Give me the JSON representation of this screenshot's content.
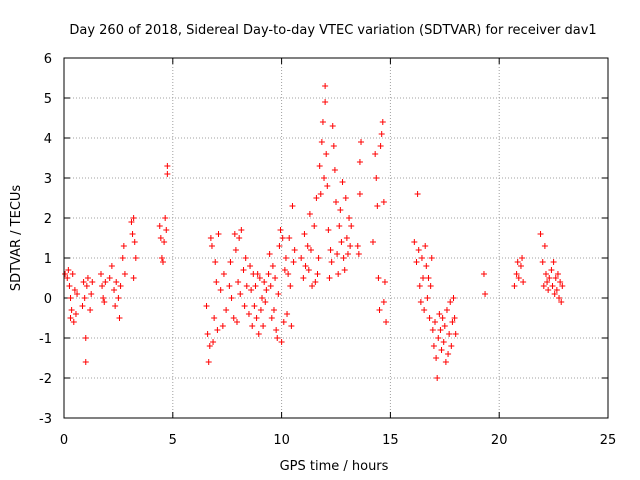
{
  "chart_data": {
    "type": "scatter",
    "title": "Day 260 of 2018, Sidereal Day-to-day VTEC variation (SDTVAR) for receiver dav1",
    "xlabel": "GPS time / hours",
    "ylabel": "SDTVAR / TECUs",
    "xlim": [
      0,
      25
    ],
    "ylim": [
      -3,
      6
    ],
    "xticks": [
      "0",
      "5",
      "10",
      "15",
      "20",
      "25"
    ],
    "yticks": [
      "-3",
      "-2",
      "-1",
      "0",
      "1",
      "2",
      "3",
      "4",
      "5",
      "6"
    ],
    "grid": true,
    "marker": "plus",
    "colors": {
      "points": "#ff0000",
      "grid": "#a0a0a0",
      "axis": "#000000"
    },
    "series": [
      {
        "name": "SDTVAR",
        "points": [
          [
            0.05,
            0.6
          ],
          [
            0.15,
            0.5
          ],
          [
            0.2,
            0.7
          ],
          [
            0.25,
            0.3
          ],
          [
            0.3,
            0.0
          ],
          [
            0.3,
            -0.5
          ],
          [
            0.35,
            -0.3
          ],
          [
            0.4,
            0.6
          ],
          [
            0.45,
            -0.6
          ],
          [
            0.5,
            0.2
          ],
          [
            0.55,
            -0.4
          ],
          [
            0.6,
            0.1
          ],
          [
            0.85,
            -0.2
          ],
          [
            0.9,
            0.4
          ],
          [
            0.95,
            0.0
          ],
          [
            1.0,
            -1.0
          ],
          [
            1.0,
            -1.6
          ],
          [
            1.05,
            0.3
          ],
          [
            1.1,
            0.5
          ],
          [
            1.2,
            -0.3
          ],
          [
            1.25,
            0.1
          ],
          [
            1.3,
            0.4
          ],
          [
            1.7,
            0.6
          ],
          [
            1.75,
            0.3
          ],
          [
            1.8,
            0.0
          ],
          [
            1.85,
            -0.1
          ],
          [
            1.9,
            0.4
          ],
          [
            2.1,
            0.5
          ],
          [
            2.2,
            0.8
          ],
          [
            2.3,
            0.2
          ],
          [
            2.35,
            -0.2
          ],
          [
            2.4,
            0.4
          ],
          [
            2.5,
            0.0
          ],
          [
            2.55,
            -0.5
          ],
          [
            2.6,
            0.3
          ],
          [
            2.7,
            1.0
          ],
          [
            2.75,
            1.3
          ],
          [
            2.8,
            0.6
          ],
          [
            3.1,
            1.9
          ],
          [
            3.15,
            1.6
          ],
          [
            3.2,
            2.0
          ],
          [
            3.25,
            1.4
          ],
          [
            3.3,
            1.0
          ],
          [
            3.2,
            0.5
          ],
          [
            4.4,
            1.8
          ],
          [
            4.45,
            1.5
          ],
          [
            4.5,
            1.0
          ],
          [
            4.55,
            0.9
          ],
          [
            4.6,
            1.4
          ],
          [
            4.65,
            2.0
          ],
          [
            4.7,
            1.7
          ],
          [
            4.75,
            3.1
          ],
          [
            4.75,
            3.3
          ],
          [
            6.55,
            -0.2
          ],
          [
            6.6,
            -0.9
          ],
          [
            6.65,
            -1.6
          ],
          [
            6.7,
            -1.2
          ],
          [
            6.75,
            1.5
          ],
          [
            6.8,
            1.3
          ],
          [
            6.85,
            -1.1
          ],
          [
            6.9,
            -0.5
          ],
          [
            6.95,
            0.9
          ],
          [
            7.0,
            0.4
          ],
          [
            7.05,
            -0.8
          ],
          [
            7.1,
            1.6
          ],
          [
            7.2,
            0.2
          ],
          [
            7.3,
            -0.7
          ],
          [
            7.35,
            0.6
          ],
          [
            7.45,
            -0.3
          ],
          [
            7.6,
            0.3
          ],
          [
            7.65,
            0.9
          ],
          [
            7.7,
            0.0
          ],
          [
            7.8,
            -0.5
          ],
          [
            7.85,
            1.6
          ],
          [
            7.9,
            1.2
          ],
          [
            7.95,
            -0.6
          ],
          [
            8.0,
            0.4
          ],
          [
            8.05,
            1.5
          ],
          [
            8.1,
            0.1
          ],
          [
            8.15,
            1.7
          ],
          [
            8.25,
            0.7
          ],
          [
            8.3,
            -0.2
          ],
          [
            8.35,
            1.0
          ],
          [
            8.4,
            0.3
          ],
          [
            8.5,
            -0.4
          ],
          [
            8.55,
            0.8
          ],
          [
            8.6,
            0.2
          ],
          [
            8.65,
            -0.7
          ],
          [
            8.7,
            0.6
          ],
          [
            8.75,
            -0.2
          ],
          [
            8.8,
            0.3
          ],
          [
            8.85,
            -0.5
          ],
          [
            8.9,
            0.6
          ],
          [
            8.95,
            -0.9
          ],
          [
            9.0,
            0.5
          ],
          [
            9.05,
            -0.3
          ],
          [
            9.1,
            0.0
          ],
          [
            9.15,
            -0.7
          ],
          [
            9.2,
            0.4
          ],
          [
            9.25,
            -0.1
          ],
          [
            9.3,
            0.2
          ],
          [
            9.4,
            0.6
          ],
          [
            9.45,
            1.1
          ],
          [
            9.5,
            0.3
          ],
          [
            9.55,
            -0.5
          ],
          [
            9.6,
            0.8
          ],
          [
            9.65,
            -0.3
          ],
          [
            9.7,
            0.5
          ],
          [
            9.75,
            -0.8
          ],
          [
            9.8,
            -1.0
          ],
          [
            9.85,
            0.1
          ],
          [
            9.9,
            1.3
          ],
          [
            9.95,
            1.7
          ],
          [
            10.0,
            -1.1
          ],
          [
            10.05,
            1.5
          ],
          [
            10.1,
            -0.6
          ],
          [
            10.15,
            0.7
          ],
          [
            10.2,
            1.0
          ],
          [
            10.25,
            -0.4
          ],
          [
            10.3,
            0.6
          ],
          [
            10.35,
            1.5
          ],
          [
            10.4,
            0.3
          ],
          [
            10.45,
            -0.7
          ],
          [
            10.5,
            2.3
          ],
          [
            10.55,
            0.9
          ],
          [
            10.6,
            1.2
          ],
          [
            10.9,
            1.0
          ],
          [
            11.0,
            0.5
          ],
          [
            11.05,
            1.6
          ],
          [
            11.1,
            0.8
          ],
          [
            11.2,
            1.3
          ],
          [
            11.25,
            0.7
          ],
          [
            11.3,
            2.1
          ],
          [
            11.35,
            1.2
          ],
          [
            11.4,
            0.3
          ],
          [
            11.5,
            1.8
          ],
          [
            11.55,
            0.4
          ],
          [
            11.6,
            2.5
          ],
          [
            11.65,
            0.6
          ],
          [
            11.7,
            1.0
          ],
          [
            11.75,
            3.3
          ],
          [
            11.8,
            2.6
          ],
          [
            11.85,
            3.9
          ],
          [
            11.9,
            4.4
          ],
          [
            11.95,
            3.0
          ],
          [
            12.0,
            5.3
          ],
          [
            12.0,
            4.9
          ],
          [
            12.05,
            3.6
          ],
          [
            12.1,
            2.8
          ],
          [
            12.15,
            1.7
          ],
          [
            12.2,
            0.5
          ],
          [
            12.25,
            1.2
          ],
          [
            12.3,
            0.9
          ],
          [
            12.35,
            4.3
          ],
          [
            12.4,
            3.8
          ],
          [
            12.45,
            3.2
          ],
          [
            12.5,
            2.4
          ],
          [
            12.55,
            1.1
          ],
          [
            12.6,
            0.6
          ],
          [
            12.65,
            1.8
          ],
          [
            12.7,
            2.2
          ],
          [
            12.75,
            1.4
          ],
          [
            12.8,
            2.9
          ],
          [
            12.85,
            1.0
          ],
          [
            12.9,
            0.7
          ],
          [
            12.95,
            2.5
          ],
          [
            13.0,
            1.5
          ],
          [
            13.05,
            1.1
          ],
          [
            13.1,
            2.0
          ],
          [
            13.15,
            1.3
          ],
          [
            13.2,
            1.8
          ],
          [
            13.5,
            1.3
          ],
          [
            13.55,
            1.1
          ],
          [
            13.6,
            2.6
          ],
          [
            13.6,
            3.4
          ],
          [
            13.65,
            3.9
          ],
          [
            14.2,
            1.4
          ],
          [
            14.3,
            3.6
          ],
          [
            14.35,
            3.0
          ],
          [
            14.4,
            2.3
          ],
          [
            14.45,
            0.5
          ],
          [
            14.5,
            -0.3
          ],
          [
            14.55,
            3.8
          ],
          [
            14.6,
            4.1
          ],
          [
            14.65,
            4.4
          ],
          [
            14.7,
            2.4
          ],
          [
            14.75,
            0.4
          ],
          [
            14.8,
            -0.6
          ],
          [
            14.7,
            -0.1
          ],
          [
            16.1,
            1.4
          ],
          [
            16.2,
            0.9
          ],
          [
            16.25,
            2.6
          ],
          [
            16.3,
            1.2
          ],
          [
            16.35,
            0.3
          ],
          [
            16.4,
            -0.1
          ],
          [
            16.45,
            1.0
          ],
          [
            16.5,
            0.5
          ],
          [
            16.55,
            -0.3
          ],
          [
            16.6,
            1.3
          ],
          [
            16.65,
            0.8
          ],
          [
            16.7,
            0.0
          ],
          [
            16.75,
            0.5
          ],
          [
            16.8,
            -0.5
          ],
          [
            16.85,
            0.3
          ],
          [
            16.9,
            1.0
          ],
          [
            16.95,
            -0.8
          ],
          [
            17.0,
            -1.2
          ],
          [
            17.05,
            -0.6
          ],
          [
            17.1,
            -1.5
          ],
          [
            17.15,
            -2.0
          ],
          [
            17.2,
            -1.0
          ],
          [
            17.25,
            -0.4
          ],
          [
            17.3,
            -0.8
          ],
          [
            17.35,
            -1.3
          ],
          [
            17.4,
            -0.5
          ],
          [
            17.45,
            -1.1
          ],
          [
            17.5,
            -0.7
          ],
          [
            17.55,
            -1.6
          ],
          [
            17.6,
            -0.3
          ],
          [
            17.65,
            -1.4
          ],
          [
            17.7,
            -0.9
          ],
          [
            17.75,
            -0.1
          ],
          [
            17.8,
            -1.2
          ],
          [
            17.85,
            -0.6
          ],
          [
            17.9,
            0.0
          ],
          [
            17.95,
            -0.5
          ],
          [
            18.0,
            -0.9
          ],
          [
            19.3,
            0.6
          ],
          [
            19.35,
            0.1
          ],
          [
            20.7,
            0.3
          ],
          [
            20.8,
            0.6
          ],
          [
            20.85,
            0.9
          ],
          [
            20.9,
            0.5
          ],
          [
            21.0,
            0.8
          ],
          [
            21.05,
            1.0
          ],
          [
            21.1,
            0.4
          ],
          [
            21.9,
            1.6
          ],
          [
            22.0,
            0.9
          ],
          [
            22.05,
            0.3
          ],
          [
            22.1,
            1.3
          ],
          [
            22.15,
            0.6
          ],
          [
            22.2,
            0.4
          ],
          [
            22.25,
            0.2
          ],
          [
            22.3,
            0.5
          ],
          [
            22.4,
            0.7
          ],
          [
            22.45,
            0.3
          ],
          [
            22.5,
            0.9
          ],
          [
            22.55,
            0.1
          ],
          [
            22.6,
            0.5
          ],
          [
            22.65,
            0.2
          ],
          [
            22.7,
            0.6
          ],
          [
            22.75,
            0.0
          ],
          [
            22.8,
            0.4
          ],
          [
            22.85,
            -0.1
          ],
          [
            22.9,
            0.3
          ]
        ]
      }
    ]
  }
}
